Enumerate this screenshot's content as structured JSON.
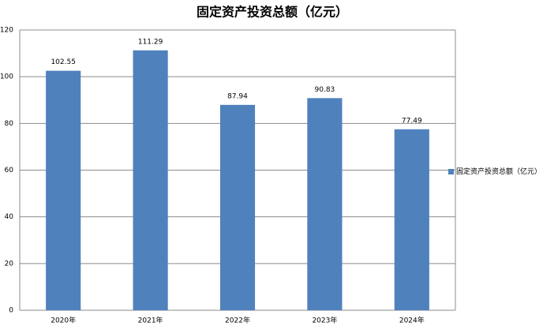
{
  "chart_data": {
    "type": "bar",
    "title": "固定资产投资总额（亿元）",
    "categories": [
      "2020年",
      "2021年",
      "2022年",
      "2023年",
      "2024年"
    ],
    "series": [
      {
        "name": "固定资产投资总额（亿元）",
        "color": "#4f81bd",
        "values": [
          102.55,
          111.29,
          87.94,
          90.83,
          77.49
        ]
      }
    ],
    "ylim": [
      0,
      120
    ],
    "yticks": [
      0,
      20,
      40,
      60,
      80,
      100,
      120
    ],
    "grid": true,
    "legend": "right"
  }
}
